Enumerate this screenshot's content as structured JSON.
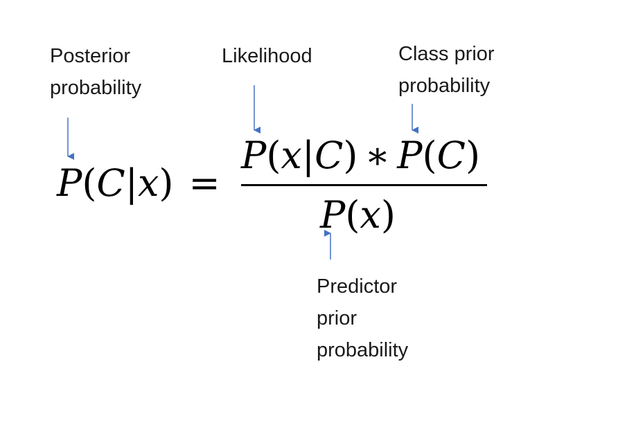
{
  "labels": {
    "posterior": [
      "Posterior",
      "probability"
    ],
    "likelihood": [
      "Likelihood"
    ],
    "class_prior": [
      "Class prior",
      "probability"
    ],
    "predictor_prior": [
      "Predictor",
      "prior",
      "probability"
    ]
  },
  "equation": {
    "lhs": {
      "fn": "P",
      "open": "(",
      "a": "C",
      "bar": "|",
      "b": "x",
      "close": ")",
      "eq": "="
    },
    "numerator": {
      "fn1": "P",
      "open1": "(",
      "a1": "x",
      "bar": "|",
      "b1": "C",
      "close1": ")",
      "op": "∗",
      "fn2": "P",
      "open2": "(",
      "a2": "C",
      "close2": ")"
    },
    "denominator": {
      "fn": "P",
      "open": "(",
      "a": "x",
      "close": ")"
    }
  },
  "colors": {
    "arrow": "#4472C4",
    "text": "#1a1a1a"
  }
}
